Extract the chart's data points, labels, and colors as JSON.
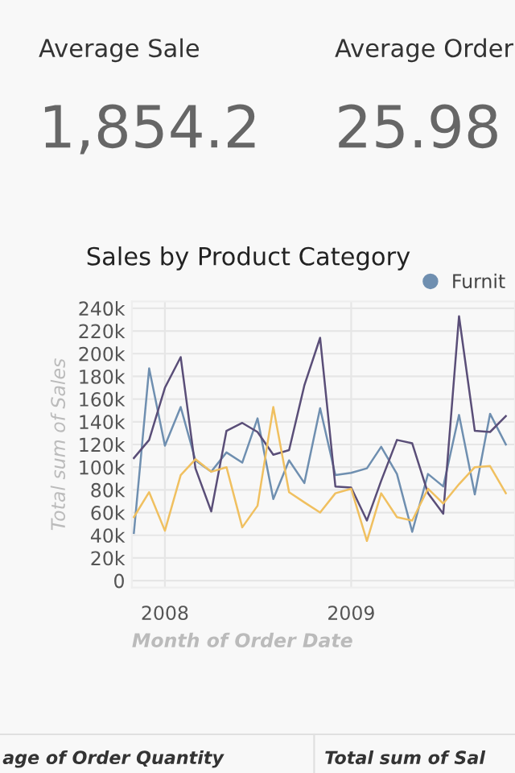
{
  "chart_data": {
    "type": "line",
    "title": "Sales by Product Category",
    "xlabel": "Month of Order Date",
    "ylabel": "Total sum of Sales",
    "annotations": [
      "Average Sale",
      "1,854.2",
      "Average Order",
      "25.98",
      "age of Order Quantity",
      "Total sum of Sal"
    ],
    "x": [
      "2007-11",
      "2007-12",
      "2008-01",
      "2008-02",
      "2008-03",
      "2008-04",
      "2008-05",
      "2008-06",
      "2008-07",
      "2008-08",
      "2008-09",
      "2008-10",
      "2008-11",
      "2008-12",
      "2009-01",
      "2009-02",
      "2009-03",
      "2009-04",
      "2009-05",
      "2009-06",
      "2009-07",
      "2009-08",
      "2009-09",
      "2009-10",
      "2009-11"
    ],
    "series": [
      {
        "name": "Furnit",
        "color": "#6f8fb0",
        "values": [
          42000,
          187000,
          119000,
          153000,
          106000,
          96000,
          113000,
          104000,
          143000,
          72000,
          106000,
          86000,
          152000,
          93000,
          95000,
          99000,
          118000,
          94000,
          43000,
          94000,
          83000,
          146000,
          76000,
          147000,
          120000
        ]
      },
      {
        "color": "#5a4e78",
        "values": [
          108000,
          124000,
          170000,
          197000,
          99000,
          61000,
          132000,
          139000,
          131000,
          111000,
          115000,
          172000,
          214000,
          83000,
          82000,
          53000,
          88000,
          124000,
          121000,
          77000,
          59000,
          233000,
          132000,
          131000,
          145000
        ]
      },
      {
        "color": "#f0c060",
        "values": [
          56000,
          78000,
          44000,
          93000,
          107000,
          96000,
          100000,
          47000,
          66000,
          153000,
          78000,
          69000,
          60000,
          77000,
          81000,
          35000,
          77000,
          56000,
          53000,
          81000,
          68000,
          85000,
          100000,
          101000,
          77000
        ]
      }
    ],
    "xlim": [
      "2007-10-28",
      "2009-11-19"
    ],
    "xticks": [
      {
        "value": "2008-01-01",
        "label": "2008"
      },
      {
        "value": "2009-01-01",
        "label": "2009"
      }
    ],
    "ylim": [
      -6000,
      246000
    ],
    "yticks": [
      0,
      {
        "value": 20000,
        "label": "20k"
      },
      {
        "value": 40000,
        "label": "40k"
      },
      {
        "value": 60000,
        "label": "60k"
      },
      {
        "value": 80000,
        "label": "80k"
      },
      {
        "value": 100000,
        "label": "100k"
      },
      {
        "value": 120000,
        "label": "120k"
      },
      {
        "value": 140000,
        "label": "140k"
      },
      {
        "value": 160000,
        "label": "160k"
      },
      {
        "value": 180000,
        "label": "180k"
      },
      {
        "value": 200000,
        "label": "200k"
      },
      {
        "value": 220000,
        "label": "220k"
      },
      {
        "value": 240000,
        "label": "240k"
      }
    ],
    "grid": true,
    "legend": "top right",
    "marker": "none",
    "line_style": "solid"
  }
}
